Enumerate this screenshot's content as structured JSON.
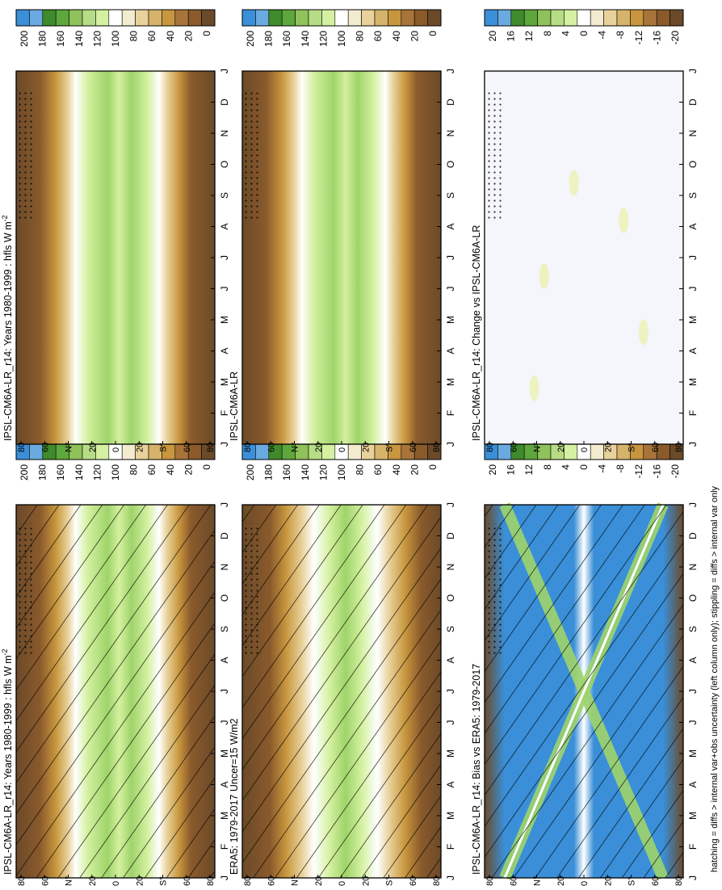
{
  "figure": {
    "footnote": "hatching = diffs > internal var+obs uncertainty (left column only); stippling = diffs > internal var only",
    "months": [
      "J",
      "F",
      "M",
      "A",
      "M",
      "J",
      "J",
      "A",
      "S",
      "O",
      "N",
      "D",
      "J"
    ],
    "lat_ticks": [
      "80",
      "60",
      "N°",
      "20",
      "0",
      "20",
      "S°",
      "60",
      "80"
    ],
    "colors": {
      "brown_dark": "#6b4a2a",
      "brown": "#8a5a2b",
      "tan": "#c8963e",
      "light_tan": "#e8d19a",
      "white": "#ffffff",
      "light_green": "#d4f0a0",
      "green": "#9fd46a",
      "dark_green": "#3f8a2a",
      "blue": "#3a8fd8"
    }
  },
  "colorbars": {
    "abs": {
      "ticks": [
        "200",
        "180",
        "160",
        "140",
        "120",
        "100",
        "80",
        "60",
        "40",
        "20",
        "0"
      ]
    },
    "diff": {
      "ticks": [
        "20",
        "16",
        "12",
        "8",
        "4",
        "0",
        "-4",
        "-8",
        "-12",
        "-16",
        "-20"
      ]
    }
  },
  "panels": [
    {
      "title": "IPSL-CM6A-LR_r14: Years 1980-1999 : hfls W m",
      "superscript": "-2"
    },
    {
      "title": "ERA5: 1979-2017 Uncer=15 W/m2",
      "superscript": ""
    },
    {
      "title": "IPSL-CM6A-LR_r14: Bias vs ERA5: 1979-2017",
      "superscript": ""
    },
    {
      "title": "IPSL-CM6A-LR_r14: Years 1980-1999 : hfls W m",
      "superscript": "-2"
    },
    {
      "title": "IPSL-CM6A-LR",
      "superscript": ""
    },
    {
      "title": "IPSL-CM6A-LR_r14: Change vs IPSL-CM6A-LR",
      "superscript": ""
    }
  ],
  "chart_data": {
    "type": "heatmap",
    "x_axis": {
      "label": "",
      "categories": [
        "J",
        "F",
        "M",
        "A",
        "M",
        "J",
        "J",
        "A",
        "S",
        "O",
        "N",
        "D",
        "J"
      ]
    },
    "y_axis": {
      "label": "",
      "tick_labels": [
        "80",
        "60",
        "N°",
        "20",
        "0",
        "20",
        "S°",
        "60",
        "80"
      ]
    },
    "panels": [
      {
        "name": "IPSL-CM6A-LR_r14: Years 1980-1999 : hfls W m-2",
        "colorbar_range": [
          0,
          200
        ]
      },
      {
        "name": "ERA5: 1979-2017 Uncer=15 W/m2",
        "colorbar_range": [
          0,
          200
        ]
      },
      {
        "name": "IPSL-CM6A-LR_r14: Bias vs ERA5: 1979-2017",
        "colorbar_range": [
          -20,
          20
        ]
      },
      {
        "name": "IPSL-CM6A-LR_r14: Years 1980-1999 : hfls W m-2",
        "colorbar_range": [
          0,
          200
        ]
      },
      {
        "name": "IPSL-CM6A-LR",
        "colorbar_range": [
          0,
          200
        ]
      },
      {
        "name": "IPSL-CM6A-LR_r14: Change vs IPSL-CM6A-LR",
        "colorbar_range": [
          -20,
          20
        ]
      }
    ]
  }
}
